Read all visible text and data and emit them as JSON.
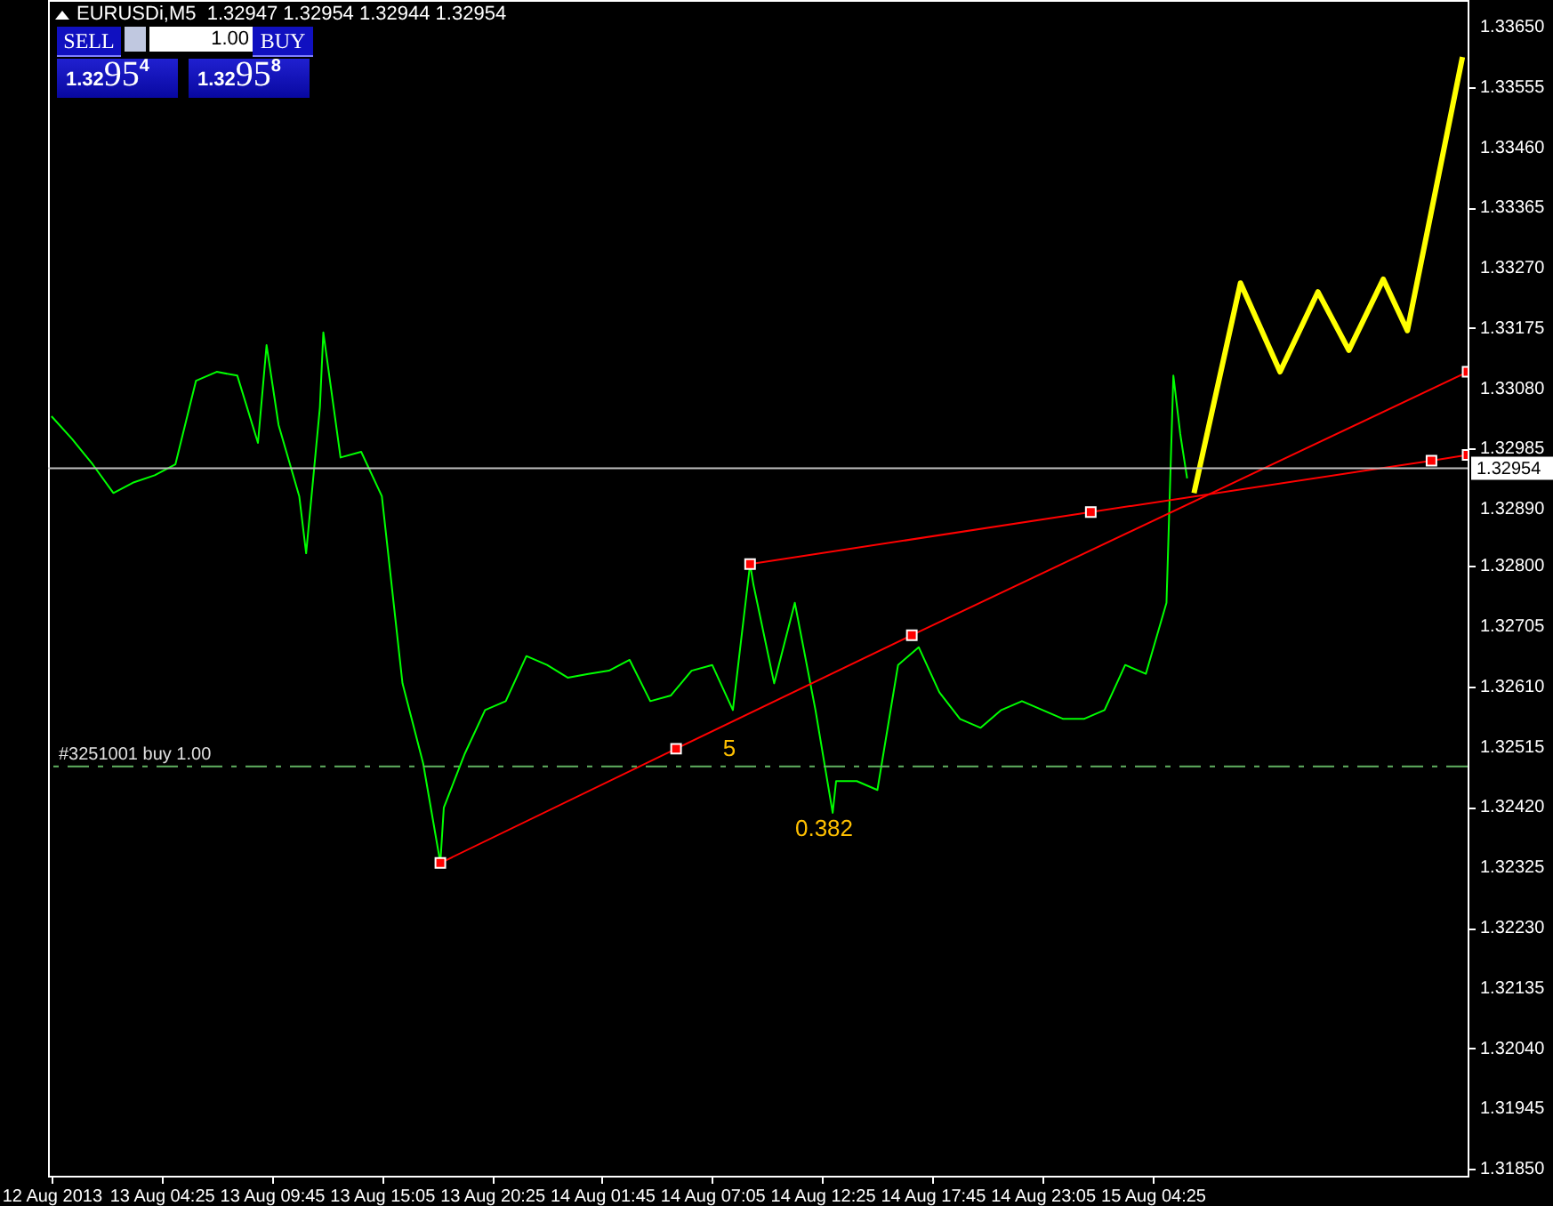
{
  "chart_data": {
    "type": "line",
    "title": "EURUSDi,M5  1.32947 1.32954 1.32944 1.32954",
    "xlim": [
      "2013-08-12T22:55",
      "2013-08-15T19:40"
    ],
    "xticks": [
      {
        "value": "2013-08-12T23:05",
        "label": "12 Aug 2013"
      },
      {
        "value": "2013-08-13T04:25",
        "label": "13 Aug 04:25"
      },
      {
        "value": "2013-08-13T09:45",
        "label": "13 Aug 09:45"
      },
      {
        "value": "2013-08-13T15:05",
        "label": "13 Aug 15:05"
      },
      {
        "value": "2013-08-13T20:25",
        "label": "13 Aug 20:25"
      },
      {
        "value": "2013-08-14T01:45",
        "label": "14 Aug 01:45"
      },
      {
        "value": "2013-08-14T07:05",
        "label": "14 Aug 07:05"
      },
      {
        "value": "2013-08-14T12:25",
        "label": "14 Aug 12:25"
      },
      {
        "value": "2013-08-14T17:45",
        "label": "14 Aug 17:45"
      },
      {
        "value": "2013-08-14T23:05",
        "label": "14 Aug 23:05"
      },
      {
        "value": "2013-08-15T04:25",
        "label": "15 Aug 04:25"
      }
    ],
    "ylim": [
      1.31839,
      1.33692
    ],
    "yticks": [
      {
        "value": 1.3365,
        "label": "1.33650"
      },
      {
        "value": 1.33555,
        "label": "1.33555"
      },
      {
        "value": 1.3346,
        "label": "1.33460"
      },
      {
        "value": 1.33365,
        "label": "1.33365"
      },
      {
        "value": 1.3327,
        "label": "1.33270"
      },
      {
        "value": 1.33175,
        "label": "1.33175"
      },
      {
        "value": 1.3308,
        "label": "1.33080"
      },
      {
        "value": 1.32985,
        "label": "1.32985"
      },
      {
        "value": 1.3289,
        "label": "1.32890"
      },
      {
        "value": 1.328,
        "label": "1.32800"
      },
      {
        "value": 1.32705,
        "label": "1.32705"
      },
      {
        "value": 1.3261,
        "label": "1.32610"
      },
      {
        "value": 1.32515,
        "label": "1.32515"
      },
      {
        "value": 1.3242,
        "label": "1.32420"
      },
      {
        "value": 1.32325,
        "label": "1.32325"
      },
      {
        "value": 1.3223,
        "label": "1.32230"
      },
      {
        "value": 1.32135,
        "label": "1.32135"
      },
      {
        "value": 1.3204,
        "label": "1.32040"
      },
      {
        "value": 1.31945,
        "label": "1.31945"
      },
      {
        "value": 1.3185,
        "label": "1.31850"
      }
    ],
    "grid": false,
    "series": [
      {
        "color": "#00ff00",
        "x": [
          "2013-08-12T23:05",
          "2013-08-13T00:05",
          "2013-08-13T01:05",
          "2013-08-13T02:05",
          "2013-08-13T03:05",
          "2013-08-13T04:05",
          "2013-08-13T05:05",
          "2013-08-13T06:05",
          "2013-08-13T07:05",
          "2013-08-13T08:05",
          "2013-08-13T09:05",
          "2013-08-13T09:30",
          "2013-08-13T10:05",
          "2013-08-13T11:05",
          "2013-08-13T11:25",
          "2013-08-13T12:05",
          "2013-08-13T12:15",
          "2013-08-13T13:05",
          "2013-08-13T14:05",
          "2013-08-13T15:05",
          "2013-08-13T16:05",
          "2013-08-13T17:05",
          "2013-08-13T17:55",
          "2013-08-13T18:05",
          "2013-08-13T19:05",
          "2013-08-13T20:05",
          "2013-08-13T21:05",
          "2013-08-13T22:05",
          "2013-08-13T23:05",
          "2013-08-14T00:05",
          "2013-08-14T01:05",
          "2013-08-14T02:05",
          "2013-08-14T03:05",
          "2013-08-14T04:05",
          "2013-08-14T05:05",
          "2013-08-14T06:05",
          "2013-08-14T07:05",
          "2013-08-14T08:05",
          "2013-08-14T08:55",
          "2013-08-14T09:05",
          "2013-08-14T10:05",
          "2013-08-14T11:05",
          "2013-08-14T12:05",
          "2013-08-14T12:55",
          "2013-08-14T13:05",
          "2013-08-14T14:05",
          "2013-08-14T15:05",
          "2013-08-14T16:05",
          "2013-08-14T17:05",
          "2013-08-14T18:05",
          "2013-08-14T19:05",
          "2013-08-14T20:05",
          "2013-08-14T21:05",
          "2013-08-14T22:05",
          "2013-08-14T23:05",
          "2013-08-15T00:05",
          "2013-08-15T01:05",
          "2013-08-15T02:05",
          "2013-08-15T03:05",
          "2013-08-15T04:05",
          "2013-08-15T05:05",
          "2013-08-15T05:25",
          "2013-08-15T05:45",
          "2013-08-15T06:05"
        ],
        "values": [
          1.33036,
          1.33,
          1.3296,
          1.32915,
          1.32932,
          1.32943,
          1.3296,
          1.33092,
          1.33106,
          1.331,
          1.32994,
          1.33148,
          1.33022,
          1.3291,
          1.3282,
          1.3305,
          1.33168,
          1.32971,
          1.3298,
          1.3291,
          1.32615,
          1.32489,
          1.32332,
          1.32419,
          1.32503,
          1.32573,
          1.32587,
          1.32658,
          1.32644,
          1.32624,
          1.3263,
          1.32635,
          1.32652,
          1.32587,
          1.32596,
          1.32635,
          1.32644,
          1.32573,
          1.32803,
          1.3277,
          1.32615,
          1.32742,
          1.32573,
          1.32411,
          1.32461,
          1.32461,
          1.32447,
          1.32644,
          1.32672,
          1.32601,
          1.32559,
          1.32545,
          1.32573,
          1.32587,
          1.32573,
          1.32559,
          1.32559,
          1.32573,
          1.32644,
          1.3263,
          1.32742,
          1.331,
          1.33008,
          1.32938
        ]
      },
      {
        "color": "#ffff00",
        "x": [
          "2013-08-15T06:25",
          "2013-08-15T08:40",
          "2013-08-15T10:35",
          "2013-08-15T12:25",
          "2013-08-15T13:55",
          "2013-08-15T15:35",
          "2013-08-15T16:45",
          "2013-08-15T19:25"
        ],
        "values": [
          1.32915,
          1.33246,
          1.33106,
          1.33232,
          1.3314,
          1.33252,
          1.33171,
          1.33602
        ]
      },
      {
        "color": "#ff0000",
        "marker": "square",
        "x": [
          "2013-08-13T17:55",
          "2013-08-14T05:20",
          "2013-08-14T16:45",
          "2013-08-15T19:40"
        ],
        "values": [
          1.32332,
          1.32512,
          1.32691,
          1.33106
        ]
      },
      {
        "color": "#ff0000",
        "marker": "square",
        "x": [
          "2013-08-14T08:55",
          "2013-08-15T01:25",
          "2013-08-15T17:55",
          "2013-08-15T19:40"
        ],
        "values": [
          1.32803,
          1.32885,
          1.32966,
          1.32975
        ]
      }
    ],
    "ref_lines": [
      {
        "axis": "y",
        "value": 1.32954,
        "label": "1.32954",
        "color": "#c0c0c0"
      },
      {
        "axis": "y",
        "value": 1.32484,
        "label": "#3251001 buy 1.00",
        "color": "#60b060",
        "line_style": "dashed"
      }
    ],
    "annotations": [
      "SELL",
      "1.00",
      "BUY",
      "1.3295$^{4}$",
      "1.3295$^{8}$",
      "5",
      "0.382"
    ]
  }
}
